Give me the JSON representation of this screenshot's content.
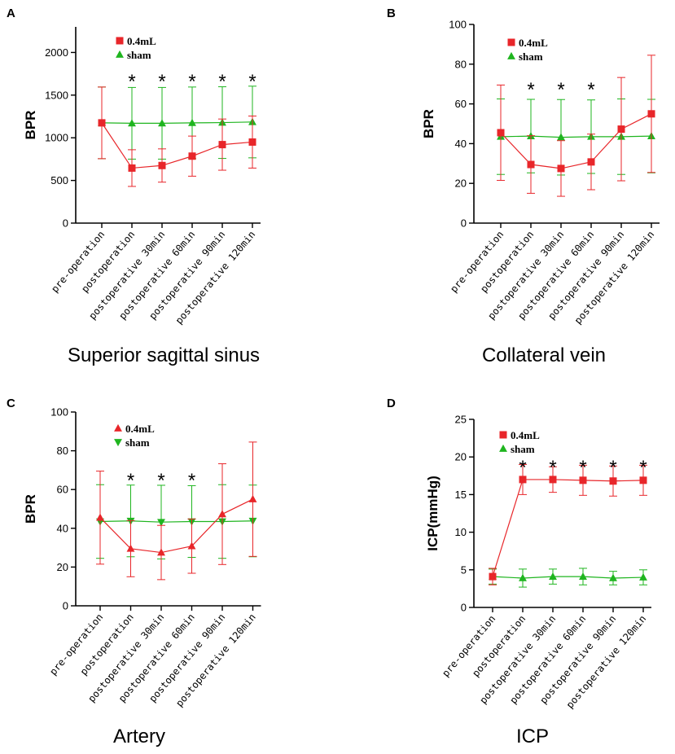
{
  "colors": {
    "treatment": "#e8262a",
    "sham": "#1fb51f",
    "axis": "#000000"
  },
  "chart_data": [
    {
      "panel": "A",
      "type": "line",
      "title": "Superior sagittal sinus",
      "ylabel": "BPR",
      "ylim": [
        0,
        2300
      ],
      "yticks": [
        0,
        500,
        1000,
        1500,
        2000
      ],
      "categories": [
        "pre-operation",
        "postoperation",
        "postoperative 30min",
        "postoperative 60min",
        "postoperative 90min",
        "postoperative 120min"
      ],
      "significant": [
        "*",
        "*",
        "*",
        "*",
        "*"
      ],
      "sig_indices": [
        1,
        2,
        3,
        4,
        5
      ],
      "series": [
        {
          "name": "0.4mL",
          "marker": "square",
          "color": "#e8262a",
          "values": [
            1175,
            645,
            675,
            785,
            920,
            950
          ],
          "err": [
            420,
            215,
            195,
            235,
            300,
            305
          ]
        },
        {
          "name": "sham",
          "marker": "triangle-up",
          "color": "#1fb51f",
          "values": [
            1175,
            1170,
            1170,
            1175,
            1178,
            1185
          ],
          "err": [
            420,
            420,
            420,
            420,
            420,
            420
          ]
        }
      ]
    },
    {
      "panel": "B",
      "type": "line",
      "title": "Collateral vein",
      "ylabel": "BPR",
      "ylim": [
        0,
        100
      ],
      "yticks": [
        0,
        20,
        40,
        60,
        80,
        100
      ],
      "categories": [
        "pre-operation",
        "postoperation",
        "postoperative 30min",
        "postoperative 60min",
        "postoperative 90min",
        "postoperative 120min"
      ],
      "significant": [
        "*",
        "*",
        "*"
      ],
      "sig_indices": [
        1,
        2,
        3
      ],
      "series": [
        {
          "name": "0.4mL",
          "marker": "square",
          "color": "#e8262a",
          "values": [
            45.5,
            29.5,
            27.5,
            30.8,
            47.3,
            55
          ],
          "err": [
            24,
            14.5,
            14,
            14,
            26,
            29.5
          ]
        },
        {
          "name": "sham",
          "marker": "triangle-up",
          "color": "#1fb51f",
          "values": [
            43.5,
            43.8,
            43.2,
            43.5,
            43.5,
            43.8
          ],
          "err": [
            19,
            18.5,
            19,
            18.5,
            19,
            18.5
          ]
        }
      ]
    },
    {
      "panel": "C",
      "type": "line",
      "title": "Artery",
      "ylabel": "BPR",
      "ylim": [
        0,
        100
      ],
      "yticks": [
        0,
        20,
        40,
        60,
        80,
        100
      ],
      "categories": [
        "pre-operation",
        "postoperation",
        "postoperative 30min",
        "postoperative 60min",
        "postoperative 90min",
        "postoperative 120min"
      ],
      "significant": [
        "*",
        "*",
        "*"
      ],
      "sig_indices": [
        1,
        2,
        3
      ],
      "series": [
        {
          "name": "0.4mL",
          "marker": "triangle-up",
          "color": "#e8262a",
          "values": [
            45.5,
            29.5,
            27.5,
            30.8,
            47.3,
            55
          ],
          "err": [
            24,
            14.5,
            14,
            14,
            26,
            29.5
          ]
        },
        {
          "name": "sham",
          "marker": "triangle-down",
          "color": "#1fb51f",
          "values": [
            43.5,
            43.8,
            43.2,
            43.5,
            43.5,
            43.8
          ],
          "err": [
            19,
            18.5,
            19,
            18.5,
            19,
            18.5
          ]
        }
      ]
    },
    {
      "panel": "D",
      "type": "line",
      "title": "ICP",
      "ylabel": "ICP(mmHg)",
      "ylim": [
        0,
        25
      ],
      "yticks": [
        0,
        5,
        10,
        15,
        20,
        25
      ],
      "categories": [
        "pre-operation",
        "postoperation",
        "postoperative 30min",
        "postoperative 60min",
        "postoperative 90min",
        "postoperative 120min"
      ],
      "significant": [
        "*",
        "*",
        "*",
        "*",
        "*"
      ],
      "sig_indices": [
        1,
        2,
        3,
        4,
        5
      ],
      "series": [
        {
          "name": "0.4mL",
          "marker": "square",
          "color": "#e8262a",
          "values": [
            4.1,
            17,
            17,
            16.9,
            16.8,
            16.9
          ],
          "err": [
            1.1,
            2,
            1.7,
            2,
            2,
            2
          ]
        },
        {
          "name": "sham",
          "marker": "triangle-up",
          "color": "#1fb51f",
          "values": [
            4.1,
            3.9,
            4.1,
            4.1,
            3.9,
            4
          ],
          "err": [
            1,
            1.2,
            1,
            1.1,
            0.9,
            1
          ]
        }
      ]
    }
  ]
}
